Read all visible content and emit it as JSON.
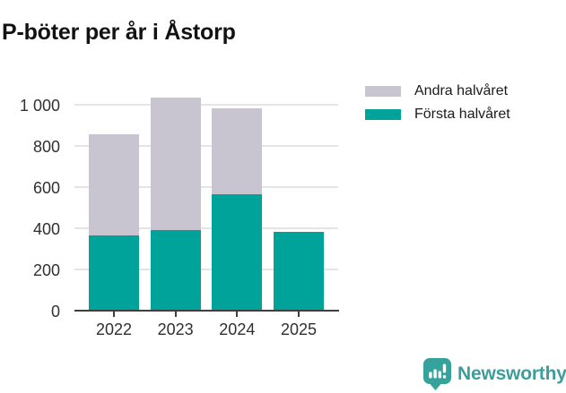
{
  "title": "P-böter per år i Åstorp",
  "legend": {
    "items": [
      {
        "label": "Andra halvåret",
        "color": "#c8c5d1"
      },
      {
        "label": "Första halvåret",
        "color": "#00a39a"
      }
    ]
  },
  "chart_data": {
    "type": "bar",
    "stacked": true,
    "title": "P-böter per år i Åstorp",
    "categories": [
      "2022",
      "2023",
      "2024",
      "2025"
    ],
    "series": [
      {
        "name": "Första halvåret",
        "color": "#00a39a",
        "values": [
          365,
          390,
          565,
          383
        ]
      },
      {
        "name": "Andra halvåret",
        "color": "#c8c5d1",
        "values": [
          490,
          645,
          415,
          0
        ]
      }
    ],
    "stack_totals": [
      855,
      1035,
      980,
      383
    ],
    "xlabel": "",
    "ylabel": "",
    "ylim": [
      0,
      1050
    ],
    "yticks": [
      0,
      200,
      400,
      600,
      800,
      1000
    ],
    "ytick_labels": [
      "0",
      "200",
      "400",
      "600",
      "800",
      "1 000"
    ],
    "grid": true,
    "legend_position": "top-right"
  },
  "branding": {
    "logo_text": "Newsworthy",
    "logo_icon": "newsworthy-bubble-barchart-icon",
    "logo_color": "#3b9e9a",
    "icon_bg_color": "#35a29b"
  },
  "colors": {
    "first_half": "#00a39a",
    "second_half": "#c8c5d1",
    "gridline": "#e4e4e4",
    "axis": "#3f3f3f",
    "title_text": "#121212",
    "tick_text": "#303030"
  }
}
